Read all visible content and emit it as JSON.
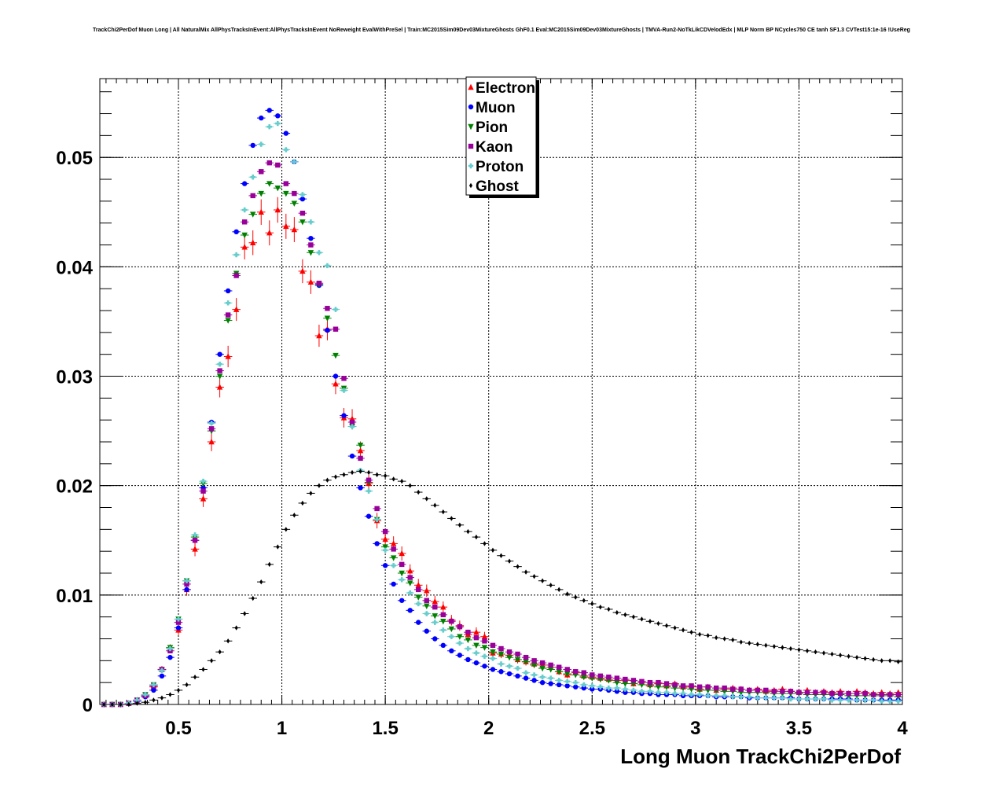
{
  "chart_data": {
    "type": "scatter",
    "title": "TrackChi2PerDof Muon Long | All NaturalMix AllPhysTracksInEvent:AllPhysTracksInEvent NoReweight EvalWithPreSel | Train:MC2015Sim09Dev03MixtureGhosts GhF0.1 Eval:MC2015Sim09Dev03MixtureGhosts | TMVA-Run2-NoTkLikCDVelodEdx | MLP Norm BP NCycles750 CE tanh SF1.3 CVTest15:1e-16 !UseReg",
    "xlabel": "Long Muon TrackChi2PerDof",
    "ylabel": "",
    "xlim": [
      0.12,
      4.0
    ],
    "ylim": [
      0,
      0.0572
    ],
    "xticks": [
      0.5,
      1,
      1.5,
      2,
      2.5,
      3,
      3.5,
      4
    ],
    "xtick_labels": [
      "0.5",
      "1",
      "1.5",
      "2",
      "2.5",
      "3",
      "3.5",
      "4"
    ],
    "yticks": [
      0,
      0.01,
      0.02,
      0.03,
      0.04,
      0.05
    ],
    "ytick_labels": [
      "0",
      "0.01",
      "0.02",
      "0.03",
      "0.04",
      "0.05"
    ],
    "grid": true,
    "legend_position": "top-center",
    "x": [
      0.14,
      0.18,
      0.22,
      0.26,
      0.3,
      0.34,
      0.38,
      0.42,
      0.46,
      0.5,
      0.54,
      0.58,
      0.62,
      0.66,
      0.7,
      0.74,
      0.78,
      0.82,
      0.86,
      0.9,
      0.94,
      0.98,
      1.02,
      1.06,
      1.1,
      1.14,
      1.18,
      1.22,
      1.26,
      1.3,
      1.34,
      1.38,
      1.42,
      1.46,
      1.5,
      1.54,
      1.58,
      1.62,
      1.66,
      1.7,
      1.74,
      1.78,
      1.82,
      1.86,
      1.9,
      1.94,
      1.98,
      2.02,
      2.06,
      2.1,
      2.14,
      2.18,
      2.22,
      2.26,
      2.3,
      2.34,
      2.38,
      2.42,
      2.46,
      2.5,
      2.54,
      2.58,
      2.62,
      2.66,
      2.7,
      2.74,
      2.78,
      2.82,
      2.86,
      2.9,
      2.94,
      2.98,
      3.02,
      3.06,
      3.1,
      3.14,
      3.18,
      3.22,
      3.26,
      3.3,
      3.34,
      3.38,
      3.42,
      3.46,
      3.5,
      3.54,
      3.58,
      3.62,
      3.66,
      3.7,
      3.74,
      3.78,
      3.82,
      3.86,
      3.9,
      3.94,
      3.98
    ],
    "series": [
      {
        "name": "Electron",
        "color": "#ff0000",
        "marker": "triangle-up",
        "values": [
          0,
          0,
          0,
          0.0001,
          0.0004,
          0.0008,
          0.0016,
          0.0032,
          0.0051,
          0.0068,
          0.0105,
          0.0142,
          0.0188,
          0.024,
          0.029,
          0.0318,
          0.0361,
          0.0418,
          0.0422,
          0.045,
          0.0431,
          0.0452,
          0.0437,
          0.0434,
          0.0396,
          0.0386,
          0.0337,
          0.0343,
          0.0293,
          0.0262,
          0.0261,
          0.0232,
          0.0202,
          0.0168,
          0.0151,
          0.0147,
          0.0138,
          0.0122,
          0.0109,
          0.0104,
          0.0094,
          0.0089,
          0.0077,
          0.0072,
          0.0064,
          0.0066,
          0.0062,
          0.0047,
          0.0046,
          0.0045,
          0.0041,
          0.0039,
          0.0037,
          0.0036,
          0.0034,
          0.003,
          0.0027,
          0.0029,
          0.0026,
          0.0025,
          0.0024,
          0.0023,
          0.0022,
          0.0022,
          0.0019,
          0.002,
          0.0018,
          0.0019,
          0.0017,
          0.0019,
          0.0016,
          0.0016,
          0.0014,
          0.0016,
          0.0013,
          0.0014,
          0.0015,
          0.0014,
          0.0013,
          0.0014,
          0.0012,
          0.0013,
          0.0014,
          0.0012,
          0.0011,
          0.0013,
          0.0011,
          0.0012,
          0.0011,
          0.0012,
          0.001,
          0.0012,
          0.0011,
          0.001,
          0.0011,
          0.001,
          0.0011
        ]
      },
      {
        "name": "Muon",
        "color": "#0000ff",
        "marker": "circle",
        "values": [
          0,
          0,
          0,
          0.0001,
          0.0003,
          0.0007,
          0.0013,
          0.0026,
          0.0043,
          0.007,
          0.0105,
          0.015,
          0.0198,
          0.0258,
          0.032,
          0.0378,
          0.0432,
          0.0476,
          0.0511,
          0.0536,
          0.0543,
          0.0538,
          0.0522,
          0.0496,
          0.0462,
          0.0426,
          0.0383,
          0.0342,
          0.03,
          0.0264,
          0.0227,
          0.0198,
          0.0172,
          0.0147,
          0.0127,
          0.011,
          0.0095,
          0.0086,
          0.0075,
          0.0067,
          0.006,
          0.0054,
          0.0049,
          0.0045,
          0.0041,
          0.0038,
          0.0035,
          0.0032,
          0.003,
          0.0028,
          0.0026,
          0.0024,
          0.0022,
          0.002,
          0.0019,
          0.0018,
          0.0017,
          0.0016,
          0.0015,
          0.0014,
          0.0014,
          0.0013,
          0.0012,
          0.0011,
          0.0011,
          0.001,
          0.001,
          0.0009,
          0.0009,
          0.0009,
          0.0008,
          0.0008,
          0.0008,
          0.0008,
          0.0007,
          0.0007,
          0.0007,
          0.0007,
          0.0006,
          0.0006,
          0.0006,
          0.0006,
          0.0006,
          0.0006,
          0.0005,
          0.0005,
          0.0005,
          0.0005,
          0.0005,
          0.0005,
          0.0005,
          0.0004,
          0.0004,
          0.0004,
          0.0004,
          0.0004,
          0.0004
        ]
      },
      {
        "name": "Pion",
        "color": "#008000",
        "marker": "triangle-down",
        "values": [
          0,
          0,
          0,
          0.0001,
          0.0004,
          0.0009,
          0.0018,
          0.0032,
          0.0052,
          0.0078,
          0.0113,
          0.0153,
          0.0202,
          0.025,
          0.03,
          0.0351,
          0.0394,
          0.0429,
          0.0448,
          0.0467,
          0.0476,
          0.0472,
          0.0467,
          0.0458,
          0.0441,
          0.0413,
          0.0384,
          0.0353,
          0.0319,
          0.0289,
          0.0254,
          0.0237,
          0.0203,
          0.0169,
          0.0144,
          0.0134,
          0.012,
          0.0111,
          0.0098,
          0.009,
          0.0081,
          0.0076,
          0.0069,
          0.0062,
          0.0059,
          0.0054,
          0.0052,
          0.0048,
          0.0046,
          0.0043,
          0.0041,
          0.0039,
          0.0036,
          0.0033,
          0.0032,
          0.003,
          0.0028,
          0.0027,
          0.0025,
          0.0024,
          0.0023,
          0.0022,
          0.002,
          0.0019,
          0.0019,
          0.0018,
          0.0017,
          0.0016,
          0.0016,
          0.0015,
          0.0015,
          0.0014,
          0.0013,
          0.0013,
          0.0013,
          0.0012,
          0.0012,
          0.0011,
          0.0011,
          0.0011,
          0.0011,
          0.001,
          0.001,
          0.001,
          0.001,
          0.0009,
          0.0009,
          0.0009,
          0.0009,
          0.0009,
          0.0008,
          0.0008,
          0.0008,
          0.0008,
          0.0008,
          0.0008,
          0.0007
        ]
      },
      {
        "name": "Kaon",
        "color": "#990099",
        "marker": "square",
        "values": [
          0,
          0,
          0,
          0.0001,
          0.0004,
          0.0008,
          0.0017,
          0.0032,
          0.0049,
          0.0075,
          0.011,
          0.015,
          0.0195,
          0.0252,
          0.0305,
          0.0356,
          0.0392,
          0.0441,
          0.0465,
          0.0487,
          0.0495,
          0.0493,
          0.0476,
          0.0467,
          0.0449,
          0.042,
          0.0385,
          0.0362,
          0.0343,
          0.0298,
          0.0258,
          0.0225,
          0.0205,
          0.0179,
          0.0158,
          0.0142,
          0.0128,
          0.0116,
          0.0105,
          0.0095,
          0.0089,
          0.0082,
          0.0076,
          0.0071,
          0.0066,
          0.0061,
          0.0058,
          0.0054,
          0.0051,
          0.0048,
          0.0046,
          0.0043,
          0.004,
          0.0038,
          0.0036,
          0.0034,
          0.0032,
          0.003,
          0.0029,
          0.0027,
          0.0026,
          0.0025,
          0.0024,
          0.0023,
          0.0022,
          0.0021,
          0.002,
          0.002,
          0.0019,
          0.0018,
          0.0017,
          0.0017,
          0.0016,
          0.0016,
          0.0015,
          0.0015,
          0.0014,
          0.0014,
          0.0013,
          0.0013,
          0.0013,
          0.0012,
          0.0012,
          0.0012,
          0.0011,
          0.0011,
          0.0011,
          0.0011,
          0.001,
          0.001,
          0.001,
          0.001,
          0.001,
          0.0009,
          0.0009,
          0.0009,
          0.0009
        ]
      },
      {
        "name": "Proton",
        "color": "#66cccc",
        "marker": "cross",
        "values": [
          0,
          0,
          0,
          0.0001,
          0.0004,
          0.0009,
          0.0018,
          0.0031,
          0.0051,
          0.0078,
          0.0113,
          0.0155,
          0.0204,
          0.0257,
          0.0311,
          0.0367,
          0.0411,
          0.0452,
          0.0482,
          0.0512,
          0.0528,
          0.0531,
          0.0507,
          0.0496,
          0.0466,
          0.0441,
          0.0413,
          0.0401,
          0.0361,
          0.0287,
          0.0254,
          0.0214,
          0.0195,
          0.0169,
          0.0141,
          0.0127,
          0.0114,
          0.0102,
          0.0092,
          0.0083,
          0.0075,
          0.0068,
          0.0062,
          0.0056,
          0.0051,
          0.0047,
          0.0044,
          0.0042,
          0.0037,
          0.0035,
          0.0033,
          0.0029,
          0.0027,
          0.0025,
          0.0024,
          0.0022,
          0.0021,
          0.002,
          0.0018,
          0.0017,
          0.0016,
          0.0015,
          0.0015,
          0.0014,
          0.0013,
          0.0012,
          0.0012,
          0.0011,
          0.0011,
          0.001,
          0.001,
          0.0009,
          0.0009,
          0.0008,
          0.0008,
          0.0008,
          0.0007,
          0.0007,
          0.0007,
          0.0006,
          0.0006,
          0.0006,
          0.0006,
          0.0005,
          0.0005,
          0.0005,
          0.0005,
          0.0005,
          0.0004,
          0.0004,
          0.0004,
          0.0004,
          0.0004,
          0.0004,
          0.0003,
          0.0003,
          0.0003
        ]
      },
      {
        "name": "Ghost",
        "color": "#000000",
        "marker": "diamond",
        "values": [
          0,
          0,
          0,
          0,
          0.0001,
          0.0002,
          0.0004,
          0.0006,
          0.0009,
          0.0013,
          0.0018,
          0.0025,
          0.0032,
          0.004,
          0.0048,
          0.0058,
          0.007,
          0.0083,
          0.0097,
          0.0112,
          0.0128,
          0.0144,
          0.016,
          0.0173,
          0.0184,
          0.0193,
          0.02,
          0.0205,
          0.0208,
          0.021,
          0.0212,
          0.0213,
          0.0212,
          0.021,
          0.0209,
          0.0206,
          0.0204,
          0.02,
          0.0194,
          0.0188,
          0.0182,
          0.0176,
          0.017,
          0.0164,
          0.0158,
          0.0153,
          0.0147,
          0.0141,
          0.0136,
          0.0131,
          0.0126,
          0.0121,
          0.0117,
          0.0113,
          0.0109,
          0.0105,
          0.0101,
          0.0098,
          0.0095,
          0.0092,
          0.0089,
          0.0087,
          0.0084,
          0.0082,
          0.008,
          0.0078,
          0.0076,
          0.0074,
          0.0072,
          0.007,
          0.0068,
          0.0066,
          0.0064,
          0.0063,
          0.0061,
          0.006,
          0.0059,
          0.0057,
          0.0056,
          0.0055,
          0.0054,
          0.0053,
          0.0052,
          0.0051,
          0.005,
          0.0049,
          0.0048,
          0.0047,
          0.0046,
          0.0045,
          0.0044,
          0.0043,
          0.0042,
          0.0041,
          0.004,
          0.004,
          0.0039
        ]
      }
    ]
  }
}
